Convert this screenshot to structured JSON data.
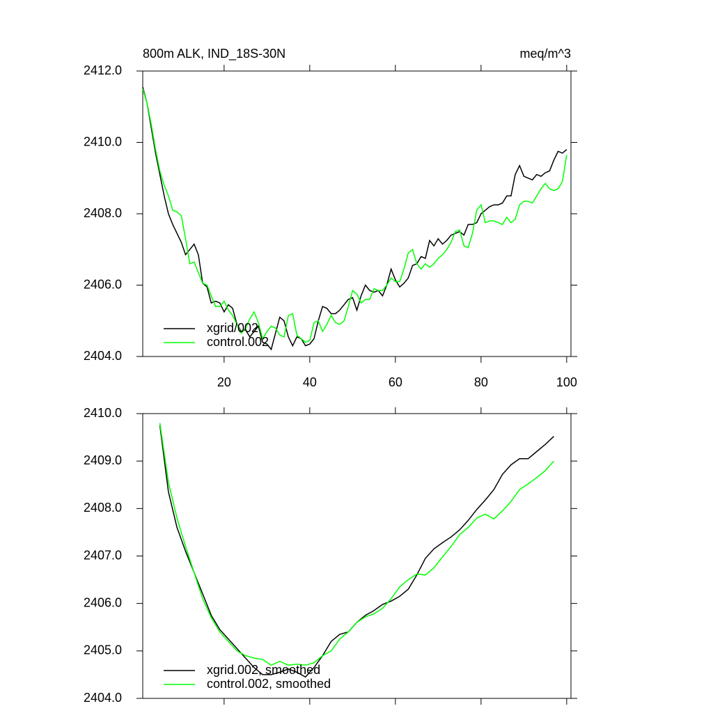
{
  "chart_data": [
    {
      "type": "line",
      "title": "800m ALK, IND_18S-30N",
      "right_title": "meq/m^3",
      "x": [
        1,
        2,
        3,
        4,
        5,
        6,
        7,
        8,
        9,
        10,
        11,
        12,
        13,
        14,
        15,
        16,
        17,
        18,
        19,
        20,
        21,
        22,
        23,
        24,
        25,
        26,
        27,
        28,
        29,
        30,
        31,
        32,
        33,
        34,
        35,
        36,
        37,
        38,
        39,
        40,
        41,
        42,
        43,
        44,
        45,
        46,
        47,
        48,
        49,
        50,
        51,
        52,
        53,
        54,
        55,
        56,
        57,
        58,
        59,
        60,
        61,
        62,
        63,
        64,
        65,
        66,
        67,
        68,
        69,
        70,
        71,
        72,
        73,
        74,
        75,
        76,
        77,
        78,
        79,
        80,
        81,
        82,
        83,
        84,
        85,
        86,
        87,
        88,
        89,
        90,
        91,
        92,
        93,
        94,
        95,
        96,
        97,
        98,
        99,
        100
      ],
      "series": [
        {
          "name": "xgrid/002",
          "color": "#000000",
          "values": [
            2411.55,
            2411.1,
            2410.4,
            2409.7,
            2409.1,
            2408.5,
            2408.0,
            2407.7,
            2407.45,
            2407.2,
            2406.85,
            2407.0,
            2407.15,
            2406.85,
            2406.05,
            2405.95,
            2405.5,
            2405.55,
            2405.5,
            2405.25,
            2405.45,
            2405.35,
            2404.9,
            2404.7,
            2404.75,
            2404.55,
            2404.7,
            2404.85,
            2404.4,
            2404.35,
            2404.2,
            2404.65,
            2405.1,
            2405.0,
            2404.55,
            2404.3,
            2404.55,
            2404.5,
            2404.3,
            2404.35,
            2404.5,
            2405.0,
            2405.4,
            2405.35,
            2405.2,
            2405.2,
            2405.3,
            2405.45,
            2405.6,
            2405.65,
            2405.3,
            2405.7,
            2406.0,
            2405.85,
            2405.8,
            2405.85,
            2405.7,
            2406.0,
            2406.45,
            2406.15,
            2405.95,
            2406.05,
            2406.2,
            2406.55,
            2406.6,
            2406.8,
            2406.75,
            2407.25,
            2407.1,
            2407.3,
            2407.15,
            2407.25,
            2407.4,
            2407.45,
            2407.5,
            2407.4,
            2407.7,
            2407.7,
            2407.75,
            2408.0,
            2408.1,
            2408.2,
            2408.25,
            2408.25,
            2408.3,
            2408.5,
            2408.5,
            2409.1,
            2409.35,
            2409.05,
            2409.0,
            2408.95,
            2409.1,
            2409.05,
            2409.15,
            2409.2,
            2409.5,
            2409.75,
            2409.7,
            2409.8
          ]
        },
        {
          "name": "control.002",
          "color": "#00ff00",
          "values": [
            2411.5,
            2411.1,
            2410.5,
            2409.8,
            2409.2,
            2408.8,
            2408.5,
            2408.1,
            2408.05,
            2407.95,
            2407.3,
            2406.6,
            2406.65,
            2406.35,
            2406.05,
            2406.0,
            2405.7,
            2405.4,
            2405.4,
            2405.55,
            2405.3,
            2405.15,
            2404.9,
            2404.65,
            2404.8,
            2405.05,
            2405.25,
            2404.95,
            2404.5,
            2404.7,
            2404.85,
            2404.8,
            2404.6,
            2404.55,
            2405.15,
            2405.2,
            2404.6,
            2404.5,
            2404.4,
            2404.45,
            2404.95,
            2405.0,
            2404.7,
            2404.9,
            2405.15,
            2404.95,
            2404.9,
            2405.0,
            2405.4,
            2405.85,
            2405.75,
            2405.5,
            2405.6,
            2405.6,
            2405.9,
            2405.85,
            2405.85,
            2406.0,
            2406.2,
            2406.1,
            2406.1,
            2406.45,
            2406.9,
            2407.0,
            2406.6,
            2406.45,
            2406.6,
            2406.5,
            2406.6,
            2406.75,
            2406.85,
            2407.0,
            2407.2,
            2407.5,
            2407.55,
            2407.1,
            2407.05,
            2407.45,
            2408.1,
            2408.25,
            2407.75,
            2407.8,
            2407.8,
            2407.75,
            2407.7,
            2407.9,
            2407.75,
            2407.85,
            2408.25,
            2408.35,
            2408.35,
            2408.3,
            2408.5,
            2408.7,
            2408.85,
            2408.7,
            2408.65,
            2408.7,
            2408.9,
            2409.65
          ]
        }
      ],
      "xlim": [
        1,
        101
      ],
      "xticks": [
        20,
        40,
        60,
        80,
        100
      ],
      "x_tick_labels": true,
      "ylim": [
        2404,
        2412
      ],
      "yticks": [
        {
          "value": 2404,
          "label": "2404.0"
        },
        {
          "value": 2406,
          "label": "2406.0"
        },
        {
          "value": 2408,
          "label": "2408.0"
        },
        {
          "value": 2410,
          "label": "2410.0"
        },
        {
          "value": 2412,
          "label": "2412.0"
        }
      ],
      "legend": "lower left"
    },
    {
      "type": "line",
      "x": [
        5,
        7,
        9,
        11,
        13,
        15,
        17,
        19,
        21,
        23,
        25,
        27,
        29,
        31,
        33,
        35,
        37,
        39,
        41,
        43,
        45,
        47,
        49,
        51,
        53,
        55,
        57,
        59,
        61,
        63,
        65,
        67,
        69,
        71,
        73,
        75,
        77,
        79,
        81,
        83,
        85,
        87,
        89,
        91,
        93,
        95,
        97
      ],
      "series": [
        {
          "name": "xgrid.002, smoothed",
          "color": "#000000",
          "values": [
            2409.75,
            2408.35,
            2407.6,
            2407.1,
            2406.65,
            2406.2,
            2405.75,
            2405.45,
            2405.25,
            2405.05,
            2404.85,
            2404.65,
            2404.5,
            2404.5,
            2404.55,
            2404.62,
            2404.55,
            2404.45,
            2404.65,
            2404.9,
            2405.2,
            2405.35,
            2405.4,
            2405.6,
            2405.75,
            2405.85,
            2405.98,
            2406.05,
            2406.15,
            2406.3,
            2406.6,
            2406.95,
            2407.15,
            2407.28,
            2407.4,
            2407.55,
            2407.75,
            2407.98,
            2408.18,
            2408.4,
            2408.72,
            2408.92,
            2409.05,
            2409.05,
            2409.2,
            2409.35,
            2409.52
          ]
        },
        {
          "name": "control.002, smoothed",
          "color": "#00ff00",
          "values": [
            2409.8,
            2408.55,
            2407.8,
            2407.2,
            2406.65,
            2406.1,
            2405.7,
            2405.4,
            2405.2,
            2405.0,
            2404.9,
            2404.85,
            2404.82,
            2404.7,
            2404.78,
            2404.7,
            2404.72,
            2404.7,
            2404.75,
            2404.9,
            2405.0,
            2405.25,
            2405.4,
            2405.6,
            2405.72,
            2405.78,
            2405.9,
            2406.1,
            2406.35,
            2406.5,
            2406.62,
            2406.6,
            2406.75,
            2406.98,
            2407.2,
            2407.45,
            2407.6,
            2407.8,
            2407.88,
            2407.78,
            2407.95,
            2408.15,
            2408.4,
            2408.52,
            2408.65,
            2408.8,
            2409.0
          ]
        }
      ],
      "xlim": [
        1,
        101
      ],
      "xticks": [
        20,
        40,
        60,
        80,
        100
      ],
      "x_tick_labels": false,
      "ylim": [
        2404,
        2410
      ],
      "yticks": [
        {
          "value": 2404,
          "label": "2404.0"
        },
        {
          "value": 2405,
          "label": "2405.0"
        },
        {
          "value": 2406,
          "label": "2406.0"
        },
        {
          "value": 2407,
          "label": "2407.0"
        },
        {
          "value": 2408,
          "label": "2408.0"
        },
        {
          "value": 2409,
          "label": "2409.0"
        },
        {
          "value": 2410,
          "label": "2410.0"
        }
      ],
      "legend": "lower left"
    }
  ]
}
